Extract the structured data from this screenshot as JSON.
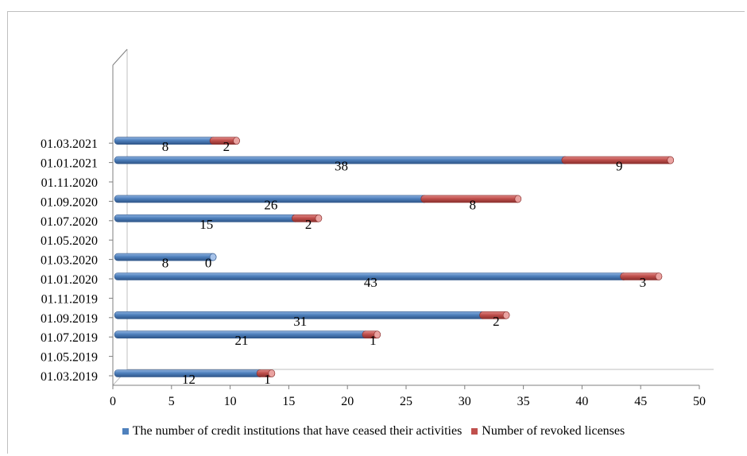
{
  "chart_data": {
    "type": "bar",
    "orientation": "horizontal",
    "stacked": true,
    "style": "3d-cylinder",
    "xlim": [
      0,
      50
    ],
    "xticks": [
      0,
      5,
      10,
      15,
      20,
      25,
      30,
      35,
      40,
      45,
      50
    ],
    "category_axis_labels": [
      "01.03.2019",
      "01.05.2019",
      "01.07.2019",
      "01.09.2019",
      "01.11.2019",
      "01.01.2020",
      "01.03.2020",
      "01.05.2020",
      "01.07.2020",
      "01.09.2020",
      "01.11.2020",
      "01.01.2021",
      "01.03.2021"
    ],
    "categories": [
      "01.03.2019",
      "01.07.2019",
      "01.09.2019",
      "01.01.2020",
      "01.03.2020",
      "01.07.2020",
      "01.09.2020",
      "01.01.2021",
      "01.03.2021"
    ],
    "series": [
      {
        "name": "The number of credit institutions that have ceased their activities",
        "color": "#4f81bd",
        "values": [
          12,
          21,
          31,
          43,
          8,
          15,
          26,
          38,
          8
        ]
      },
      {
        "name": "Number of revoked licenses",
        "color": "#c0504d",
        "values": [
          1,
          1,
          2,
          3,
          0,
          2,
          8,
          9,
          2
        ]
      }
    ],
    "legend_position": "bottom",
    "grid": false
  }
}
